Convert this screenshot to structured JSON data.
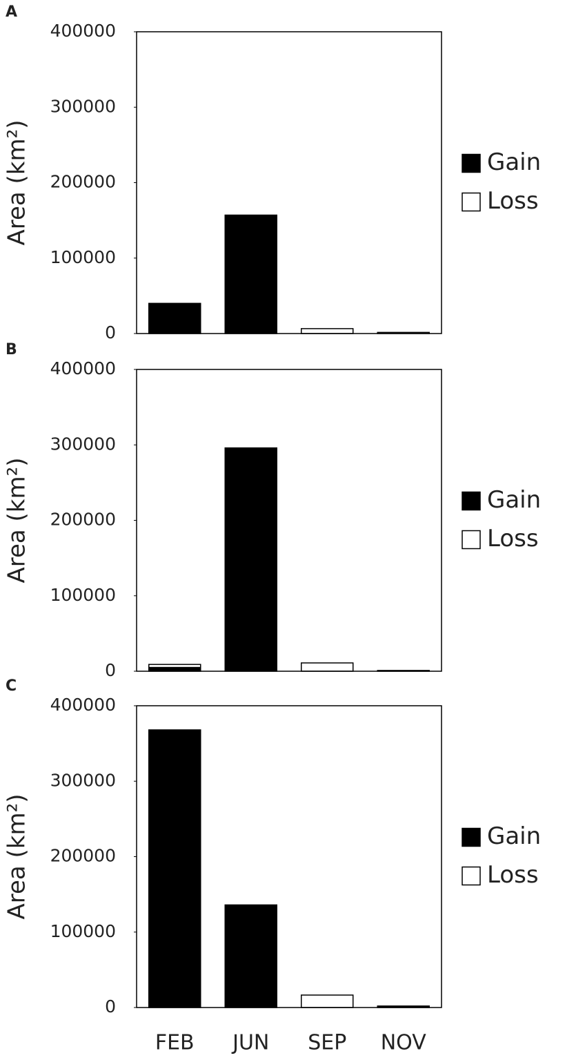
{
  "chart_data": [
    {
      "type": "bar",
      "label": "A",
      "ylabel": "Area (km²)",
      "stacked": true,
      "categories": [
        null,
        null,
        null,
        null
      ],
      "series": [
        {
          "name": "Gain",
          "color": "#000000",
          "values": [
            40000,
            157000,
            0,
            0
          ]
        },
        {
          "name": "Loss",
          "color": "#ffffff",
          "values": [
            0,
            0,
            6500,
            1500
          ]
        }
      ],
      "ylim": [
        0,
        400000
      ],
      "yticks": [
        0,
        100000,
        200000,
        300000,
        400000
      ]
    },
    {
      "type": "bar",
      "label": "B",
      "ylabel": "Area (km²)",
      "stacked": true,
      "categories": [
        null,
        null,
        null,
        null
      ],
      "series": [
        {
          "name": "Gain",
          "color": "#000000",
          "values": [
            5000,
            296000,
            0,
            0
          ]
        },
        {
          "name": "Loss",
          "color": "#ffffff",
          "values": [
            4000,
            0,
            11000,
            1000
          ]
        }
      ],
      "ylim": [
        0,
        400000
      ],
      "yticks": [
        0,
        100000,
        200000,
        300000,
        400000
      ]
    },
    {
      "type": "bar",
      "label": "C",
      "ylabel": "Area (km²)",
      "stacked": true,
      "categories": [
        "FEB",
        "JUN",
        "SEP",
        "NOV"
      ],
      "series": [
        {
          "name": "Gain",
          "color": "#000000",
          "values": [
            368000,
            136000,
            0,
            2000
          ]
        },
        {
          "name": "Loss",
          "color": "#ffffff",
          "values": [
            0,
            0,
            16500,
            0
          ]
        }
      ],
      "ylim": [
        0,
        400000
      ],
      "yticks": [
        0,
        100000,
        200000,
        300000,
        400000
      ]
    }
  ]
}
